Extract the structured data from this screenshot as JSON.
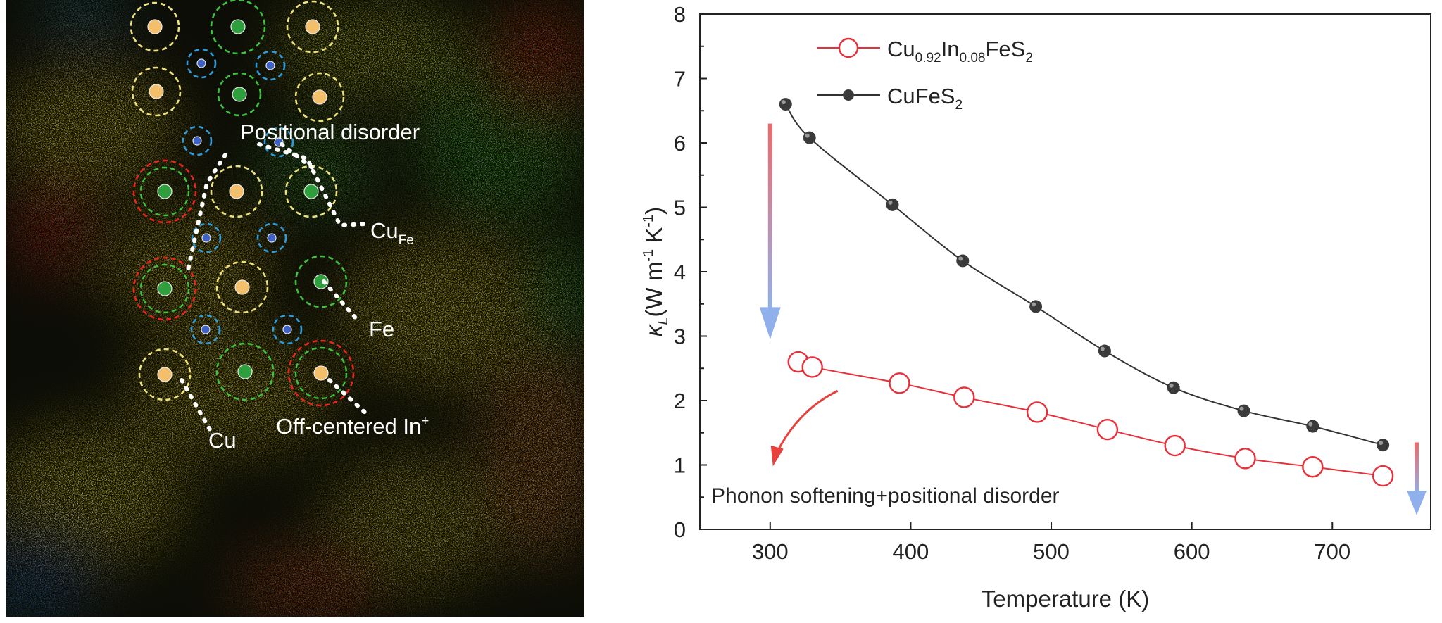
{
  "map": {
    "labels": {
      "positional_disorder": "Positional disorder",
      "cu_fe_main": "Cu",
      "cu_fe_sub": "Fe",
      "fe": "Fe",
      "cu": "Cu",
      "off_centered": "Off-centered In",
      "off_centered_sup": "+"
    },
    "colors": {
      "cu_site": "#f3bf6a",
      "fe_site": "#2f9e3c",
      "s_site": "#3f62c8",
      "ring_yellow": "#f0e27a",
      "ring_green": "#3fc23f",
      "ring_red": "#e8261c",
      "ring_blue": "#2f9bdc"
    }
  },
  "legend": {
    "s1_main": "Cu",
    "s1_sub1": "0.92",
    "s1_mid": "In",
    "s1_sub2": "0.08",
    "s1_end": "FeS",
    "s1_sub3": "2",
    "s2_main": "CuFeS",
    "s2_sub": "2"
  },
  "annotation": {
    "text": "Phonon softening+positional disorder"
  },
  "axes": {
    "x_title": "Temperature (K)",
    "y_title_sym": "κ",
    "y_title_sub": "L",
    "y_title_open": "(W m",
    "y_title_exp1": "-1",
    "y_title_mid": " K",
    "y_title_exp2": "-1",
    "y_title_close": ")"
  },
  "chart_data": {
    "type": "line",
    "xlabel": "Temperature (K)",
    "ylabel": "κL(W m-1 K-1)",
    "xlim": [
      250,
      770
    ],
    "ylim": [
      0,
      8
    ],
    "xticks": [
      300,
      400,
      500,
      600,
      700
    ],
    "yticks": [
      0,
      1,
      2,
      3,
      4,
      5,
      6,
      7,
      8
    ],
    "grid": false,
    "legend_position": "top-right",
    "series": [
      {
        "name": "Cu0.92In0.08FeS2",
        "color": "#e8303a",
        "marker": "open-circle",
        "x": [
          320,
          330,
          392,
          438,
          490,
          540,
          588,
          638,
          686,
          736
        ],
        "y": [
          2.6,
          2.52,
          2.27,
          2.05,
          1.82,
          1.55,
          1.3,
          1.1,
          0.97,
          0.83
        ]
      },
      {
        "name": "CuFeS2",
        "color": "#333333",
        "marker": "filled-sphere",
        "x": [
          311,
          328,
          387,
          437,
          489,
          538,
          587,
          637,
          686,
          736
        ],
        "y": [
          6.6,
          6.08,
          5.04,
          4.17,
          3.46,
          2.77,
          2.2,
          1.84,
          1.6,
          1.31
        ]
      }
    ]
  }
}
